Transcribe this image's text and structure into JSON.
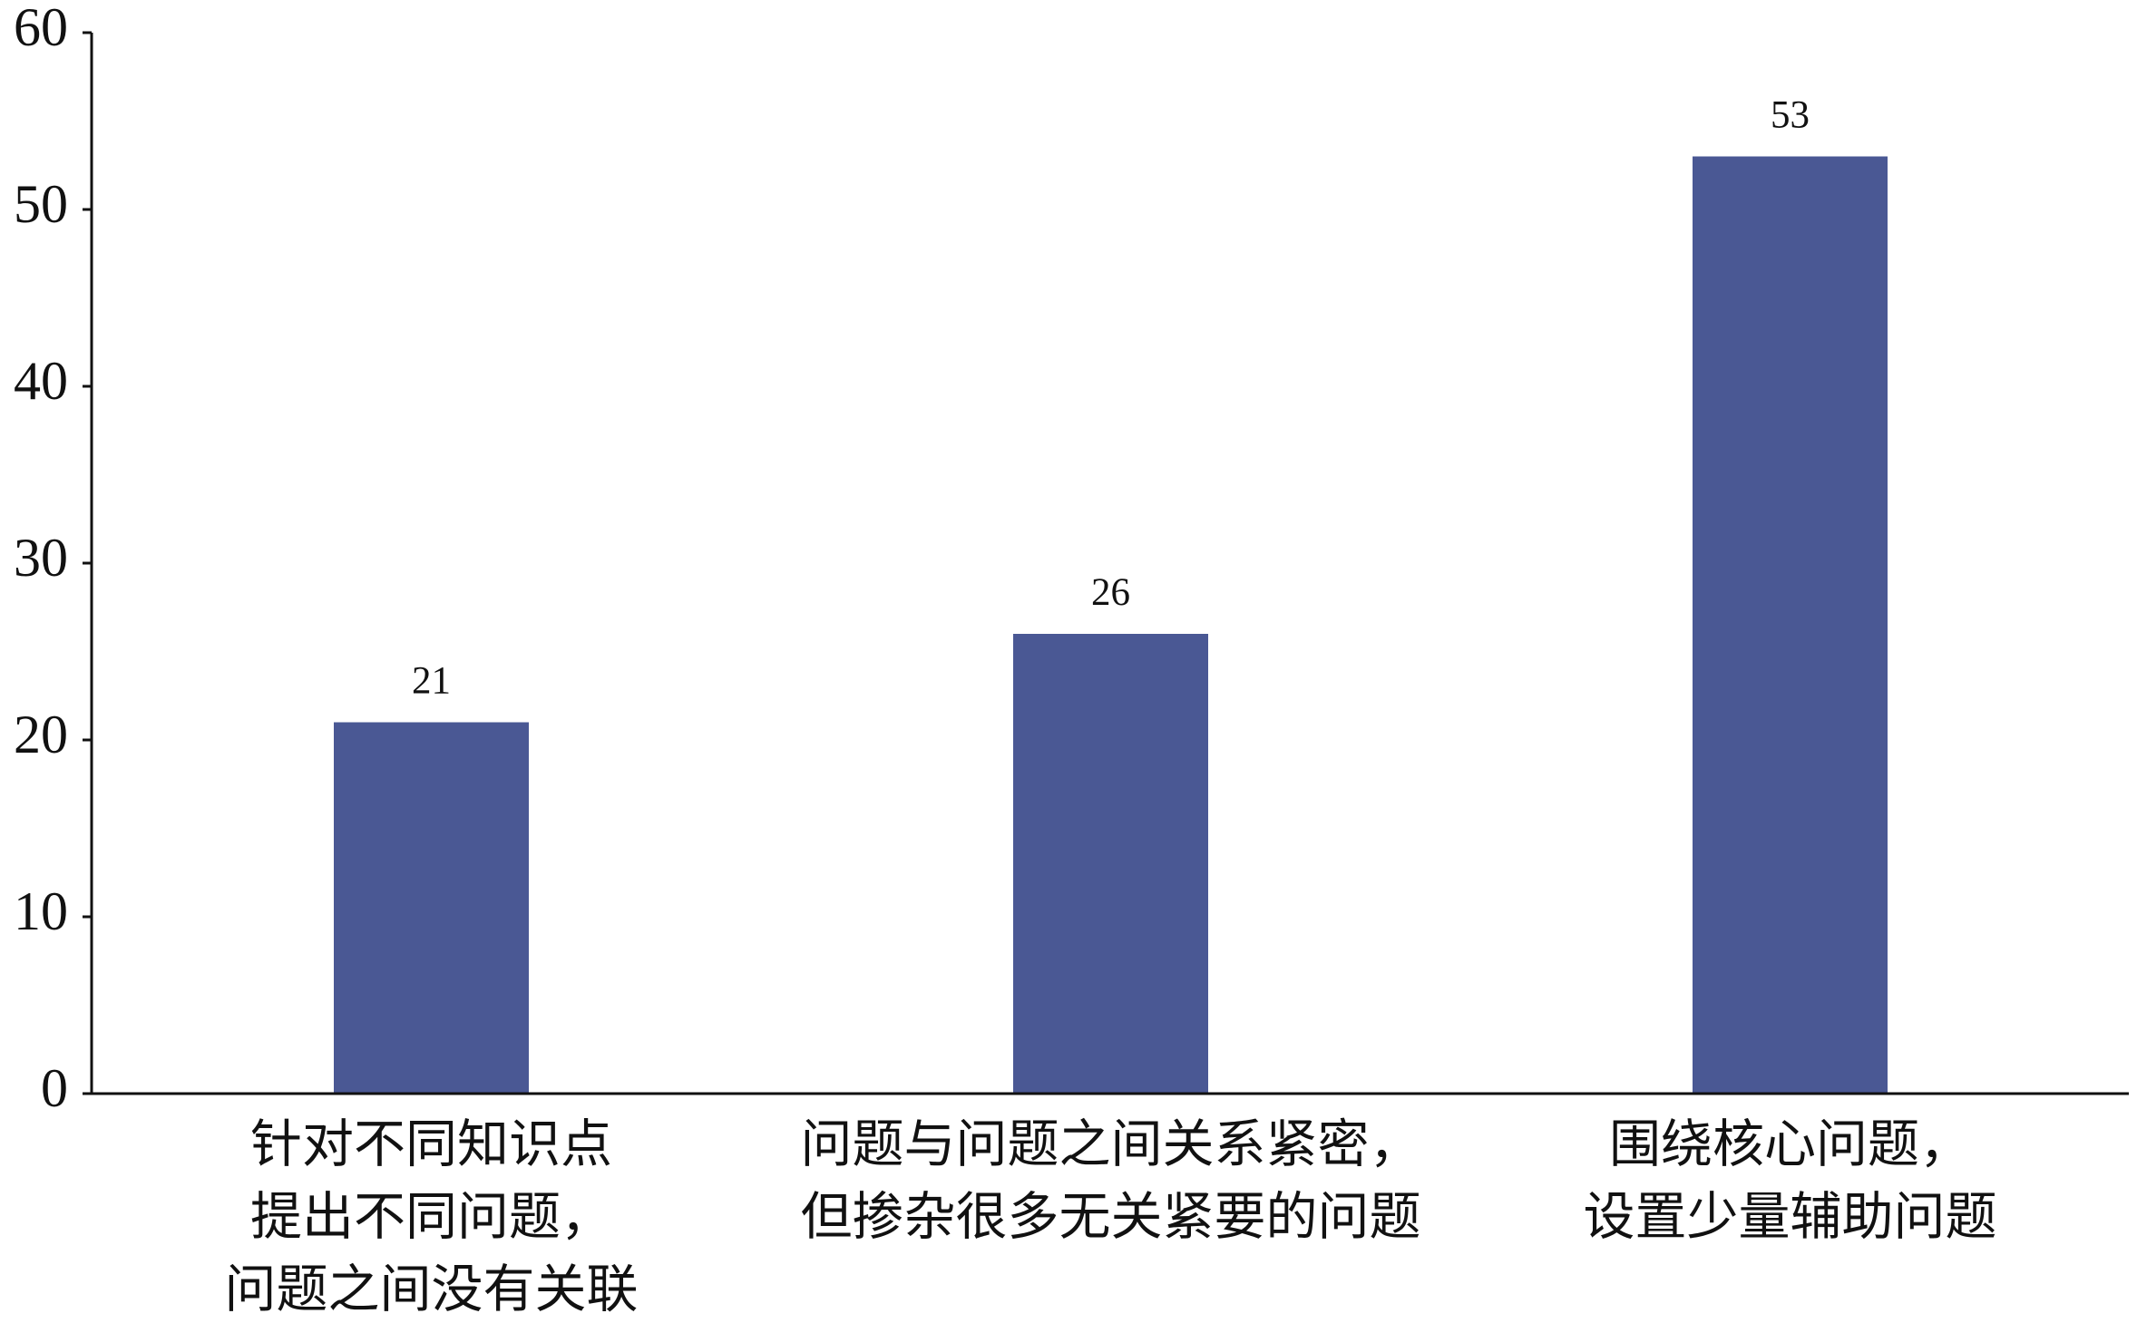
{
  "chart_data": {
    "type": "bar",
    "categories": [
      [
        "针对不同知识点",
        "提出不同问题，",
        "问题之间没有关联"
      ],
      [
        "问题与问题之间关系紧密，",
        "但掺杂很多无关紧要的问题"
      ],
      [
        "围绕核心问题，",
        "设置少量辅助问题"
      ]
    ],
    "values": [
      21,
      26,
      53
    ],
    "color": "#4a5894",
    "ylim": [
      0,
      60
    ],
    "yticks": [
      0,
      10,
      20,
      30,
      40,
      50,
      60
    ],
    "grid": false
  }
}
